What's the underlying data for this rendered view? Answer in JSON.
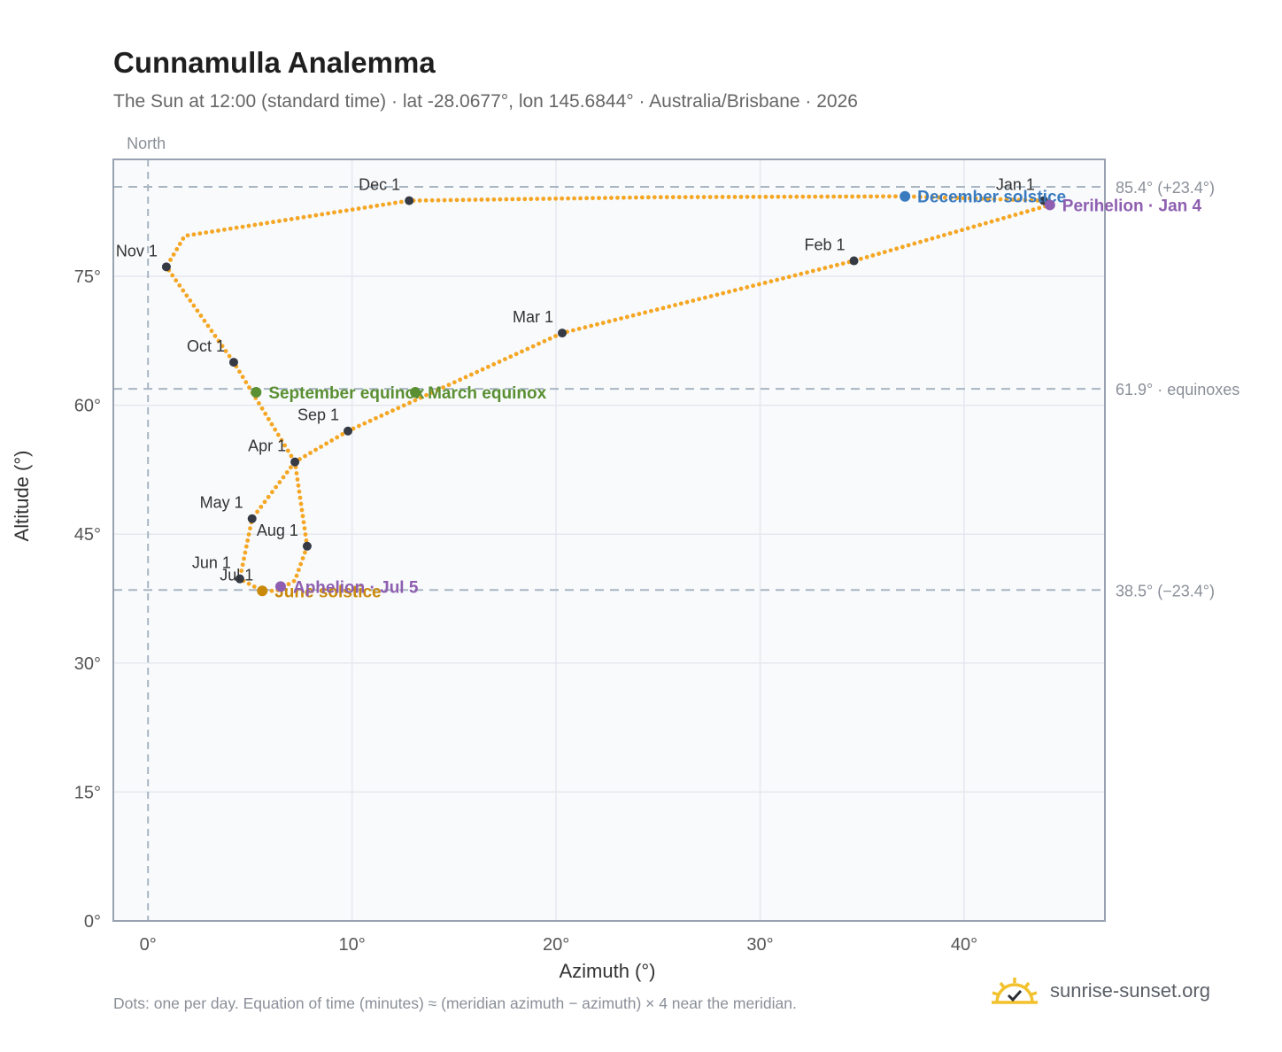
{
  "title": "Cunnamulla Analemma",
  "subtitle": "The Sun at 12:00 (standard time) · lat -28.0677°, lon 145.6844° · Australia/Brisbane · 2026",
  "footnote": "Dots: one per day. Equation of time (minutes) ≈ (meridian azimuth − azimuth) × 4 near the meridian.",
  "brand": {
    "name": "sunrise-sunset.org",
    "icon": "sun-logo-icon"
  },
  "colors": {
    "curve": "#f5a623",
    "month_dot": "#363a45",
    "equinox": "#5a8f32",
    "june_solstice": "#c9890a",
    "december_solstice": "#3a7bbf",
    "apsis": "#8e5fb0",
    "plot_bg": "#f8fafc",
    "grid": "#e4e8ee",
    "reference": "#a9b6c2"
  },
  "chart_data": {
    "type": "scatter",
    "xlabel": "Azimuth (°)",
    "ylabel": "Altitude (°)",
    "xlim": [
      -1.7,
      46.9
    ],
    "ylim": [
      0,
      88.6
    ],
    "x_ticks": [
      0,
      10,
      20,
      30,
      40
    ],
    "x_tick_labels": [
      "0°",
      "10°",
      "20°",
      "30°",
      "40°"
    ],
    "y_ticks": [
      0,
      15,
      30,
      45,
      60,
      75
    ],
    "y_tick_labels": [
      "0°",
      "15°",
      "30°",
      "45°",
      "60°",
      "75°"
    ],
    "grid": true,
    "meridian_label": "North",
    "reference_lines": [
      {
        "y": 85.4,
        "label": "85.4° (+23.4°)"
      },
      {
        "y": 61.9,
        "label": "61.9° · equinoxes"
      },
      {
        "y": 38.5,
        "label": "38.5° (−23.4°)"
      }
    ],
    "daily_path_anchors": [
      {
        "x": 43.9,
        "y": 83.8
      },
      {
        "x": 44.2,
        "y": 83.3
      },
      {
        "x": 34.6,
        "y": 76.8
      },
      {
        "x": 20.3,
        "y": 68.4
      },
      {
        "x": 9.8,
        "y": 57.0
      },
      {
        "x": 7.2,
        "y": 53.4
      },
      {
        "x": 5.1,
        "y": 46.8
      },
      {
        "x": 4.5,
        "y": 39.8
      },
      {
        "x": 5.6,
        "y": 38.4
      },
      {
        "x": 6.3,
        "y": 38.4
      },
      {
        "x": 7.2,
        "y": 39.6
      },
      {
        "x": 7.8,
        "y": 43.6
      },
      {
        "x": 7.2,
        "y": 53.4
      },
      {
        "x": 4.2,
        "y": 65.0
      },
      {
        "x": 0.9,
        "y": 76.1
      },
      {
        "x": 1.8,
        "y": 79.7
      },
      {
        "x": 12.8,
        "y": 83.8
      },
      {
        "x": 25.0,
        "y": 84.2
      },
      {
        "x": 37.1,
        "y": 84.3
      },
      {
        "x": 43.9,
        "y": 83.8
      }
    ],
    "months": [
      {
        "label": "Jan 1",
        "x": 43.9,
        "y": 83.8
      },
      {
        "label": "Feb 1",
        "x": 34.6,
        "y": 76.8
      },
      {
        "label": "Mar 1",
        "x": 20.3,
        "y": 68.4
      },
      {
        "label": "Apr 1",
        "x": 7.2,
        "y": 53.4
      },
      {
        "label": "May 1",
        "x": 5.1,
        "y": 46.8
      },
      {
        "label": "Jun 1",
        "x": 4.5,
        "y": 39.8
      },
      {
        "label": "Jul 1",
        "x": 5.6,
        "y": 38.4
      },
      {
        "label": "Aug 1",
        "x": 7.8,
        "y": 43.6
      },
      {
        "label": "Sep 1",
        "x": 9.8,
        "y": 57.0
      },
      {
        "label": "Oct 1",
        "x": 4.2,
        "y": 65.0
      },
      {
        "label": "Nov 1",
        "x": 0.9,
        "y": 76.1
      },
      {
        "label": "Dec 1",
        "x": 12.8,
        "y": 83.8
      }
    ],
    "events": [
      {
        "label": "March equinox",
        "x": 13.1,
        "y": 61.5,
        "color": "#5a8f32"
      },
      {
        "label": "September equinox",
        "x": 5.3,
        "y": 61.5,
        "color": "#5a8f32"
      },
      {
        "label": "June solstice",
        "x": 5.6,
        "y": 38.4,
        "color": "#c9890a"
      },
      {
        "label": "December solstice",
        "x": 37.1,
        "y": 84.3,
        "color": "#3a7bbf"
      },
      {
        "label": "Perihelion · Jan 4",
        "x": 44.2,
        "y": 83.3,
        "color": "#8e5fb0"
      },
      {
        "label": "Aphelion · Jul 5",
        "x": 6.5,
        "y": 38.9,
        "color": "#8e5fb0"
      }
    ]
  }
}
